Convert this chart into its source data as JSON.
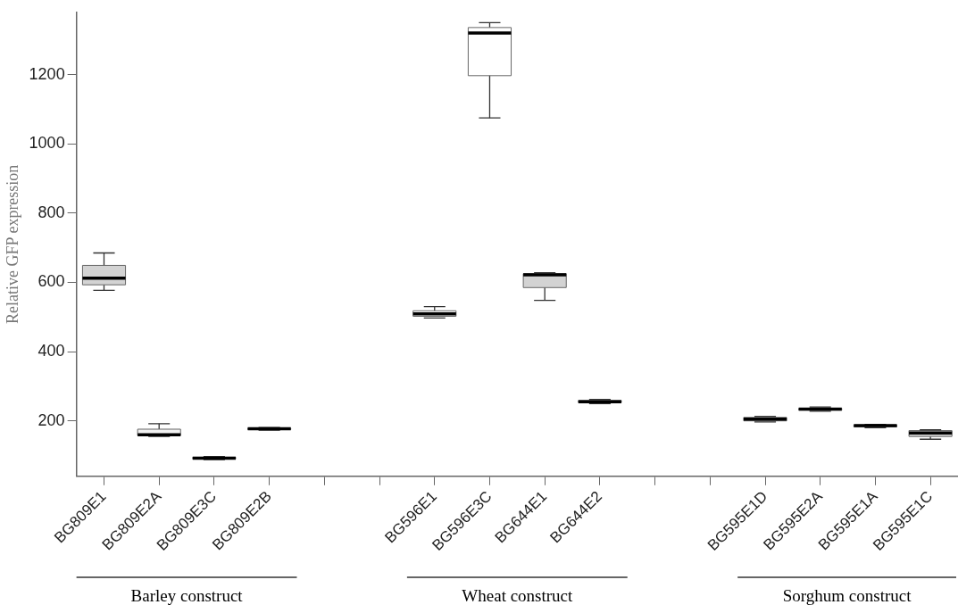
{
  "chart_data": {
    "type": "box",
    "ylabel": "Relative GFP expression",
    "categories": [
      "BG809E1",
      "BG809E2A",
      "BG809E3C",
      "BG809E2B",
      null,
      null,
      "BG596E1",
      "BG596E3C",
      "BG644E1",
      "BG644E2",
      null,
      null,
      "BG595E1D",
      "BG595E2A",
      "BG595E1A",
      "BG595E1C"
    ],
    "series": [
      {
        "colors": [
          "#d3d3d3",
          "#f2f2f2",
          "#ffffff",
          "#ffffff",
          "#ffffff",
          "#ffffff",
          "#ffffff",
          "#ffffff",
          "#d3d3d3",
          "#ffffff",
          "#ffffff",
          "#ffffff",
          "#ffffff",
          "#ffffff",
          "#ffffff",
          "#d3d3d3"
        ],
        "boxes": [
          {
            "low": 577,
            "q1": 593,
            "median": 612,
            "q3": 649,
            "high": 685
          },
          {
            "low": 155,
            "q1": 158,
            "median": 160,
            "q3": 176,
            "high": 192
          },
          {
            "low": 88,
            "q1": 90,
            "median": 92,
            "q3": 95,
            "high": 97
          },
          {
            "low": 173,
            "q1": 175,
            "median": 177,
            "q3": 179,
            "high": 181
          },
          null,
          null,
          {
            "low": 497,
            "q1": 502,
            "median": 509,
            "q3": 518,
            "high": 530
          },
          {
            "low": 1075,
            "q1": 1197,
            "median": 1320,
            "q3": 1336,
            "high": 1350
          },
          {
            "low": 548,
            "q1": 585,
            "median": 622,
            "q3": 625,
            "high": 628
          },
          {
            "low": 250,
            "q1": 253,
            "median": 255,
            "q3": 259,
            "high": 262
          },
          null,
          null,
          {
            "low": 197,
            "q1": 200,
            "median": 205,
            "q3": 210,
            "high": 213
          },
          {
            "low": 228,
            "q1": 231,
            "median": 234,
            "q3": 236,
            "high": 240
          },
          {
            "low": 180,
            "q1": 183,
            "median": 186,
            "q3": 188,
            "high": 190
          },
          {
            "low": 147,
            "q1": 155,
            "median": 165,
            "q3": 172,
            "high": 174
          }
        ]
      }
    ],
    "ylim": [
      40,
      1380
    ],
    "yticks": [
      200,
      400,
      600,
      800,
      1000,
      1200
    ],
    "grid": false,
    "annotations": [
      "Barley construct",
      "Wheat construct",
      "Sorghum construct"
    ]
  }
}
